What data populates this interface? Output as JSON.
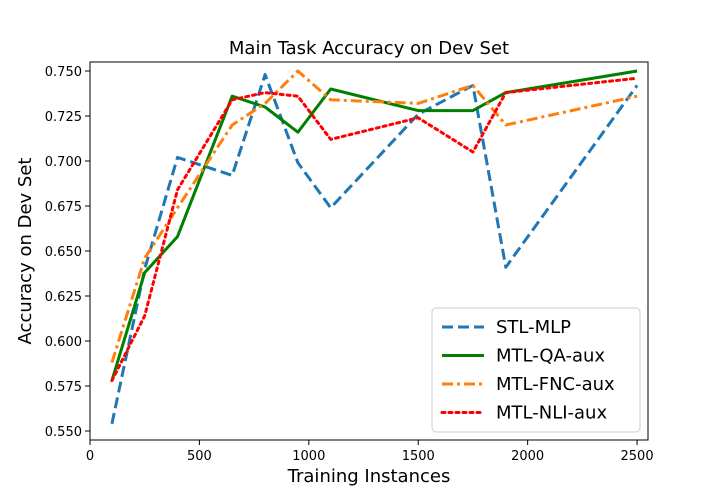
{
  "chart_data": {
    "type": "line",
    "title": "Main Task Accuracy on Dev Set",
    "xlabel": "Training Instances",
    "ylabel": "Accuracy on Dev Set",
    "xlim": [
      0,
      2550
    ],
    "ylim": [
      0.545,
      0.755
    ],
    "x_ticks": [
      0,
      500,
      1000,
      1500,
      2000,
      2500
    ],
    "y_ticks": [
      0.55,
      0.575,
      0.6,
      0.625,
      0.65,
      0.675,
      0.7,
      0.725,
      0.75
    ],
    "grid": false,
    "legend_position": "lower-right",
    "series": [
      {
        "name": "STL-MLP",
        "color": "#1f77b4",
        "style": "dashed",
        "x": [
          100,
          250,
          400,
          650,
          800,
          950,
          1100,
          1500,
          1750,
          1900,
          2500
        ],
        "y": [
          0.554,
          0.64,
          0.702,
          0.692,
          0.748,
          0.699,
          0.674,
          0.726,
          0.742,
          0.641,
          0.742
        ]
      },
      {
        "name": "MTL-QA-aux",
        "color": "#008000",
        "style": "solid",
        "x": [
          100,
          250,
          400,
          650,
          800,
          950,
          1100,
          1500,
          1750,
          1900,
          2500
        ],
        "y": [
          0.578,
          0.638,
          0.658,
          0.736,
          0.73,
          0.716,
          0.74,
          0.728,
          0.728,
          0.738,
          0.75
        ]
      },
      {
        "name": "MTL-FNC-aux",
        "color": "#ff7f0e",
        "style": "dashdot",
        "x": [
          100,
          250,
          400,
          650,
          800,
          950,
          1100,
          1500,
          1750,
          1900,
          2500
        ],
        "y": [
          0.588,
          0.646,
          0.674,
          0.72,
          0.732,
          0.75,
          0.734,
          0.732,
          0.742,
          0.72,
          0.736
        ]
      },
      {
        "name": "MTL-NLI-aux",
        "color": "#ff0000",
        "style": "dotted",
        "x": [
          100,
          250,
          400,
          650,
          800,
          950,
          1100,
          1500,
          1750,
          1900,
          2500
        ],
        "y": [
          0.578,
          0.614,
          0.684,
          0.734,
          0.738,
          0.736,
          0.712,
          0.724,
          0.705,
          0.738,
          0.746
        ]
      }
    ]
  }
}
